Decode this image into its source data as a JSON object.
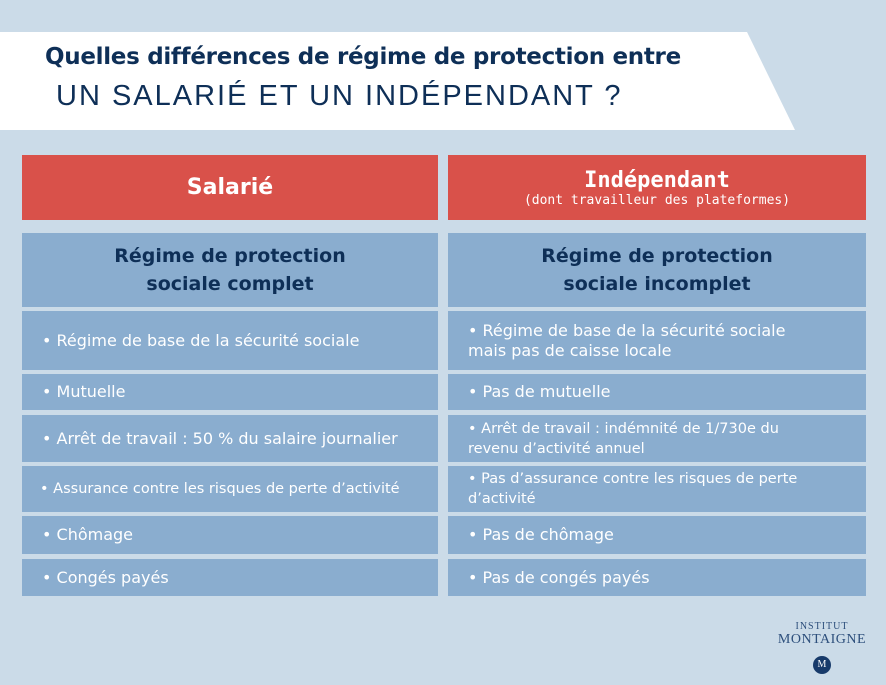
{
  "title": {
    "line1": "Quelles différences de régime de protection entre",
    "line2": "UN SALARIÉ ET UN INDÉPENDANT ?"
  },
  "columns": [
    {
      "header": "Salarié",
      "subheader": "",
      "regime": [
        "Régime de protection",
        "sociale complet"
      ],
      "items": [
        "• Régime de base de la sécurité sociale",
        "• Mutuelle",
        "• Arrêt de travail : 50 % du salaire journalier",
        "• Assurance contre les risques de perte d’activité",
        "• Chômage",
        "• Congés payés"
      ]
    },
    {
      "header": "Indépendant",
      "subheader": "(dont travailleur des plateformes)",
      "regime": [
        "Régime de protection",
        "sociale incomplet"
      ],
      "items": [
        "• Régime de base de la sécurité sociale mais pas de caisse locale",
        "• Pas de mutuelle",
        "• Arrêt de travail : indémnité de 1/730e du revenu d’activité annuel",
        "• Pas d’assurance contre les risques de perte d’activité",
        "• Pas de chômage",
        "• Pas de congés payés"
      ]
    }
  ],
  "logo": {
    "line1": "INSTITUT",
    "line2": "MONTAIGNE",
    "seal": "M"
  },
  "colors": {
    "background": "#cbdbe8",
    "header_red": "#d9514a",
    "cell_blue": "#8aadcf",
    "navy": "#0e2f57"
  }
}
